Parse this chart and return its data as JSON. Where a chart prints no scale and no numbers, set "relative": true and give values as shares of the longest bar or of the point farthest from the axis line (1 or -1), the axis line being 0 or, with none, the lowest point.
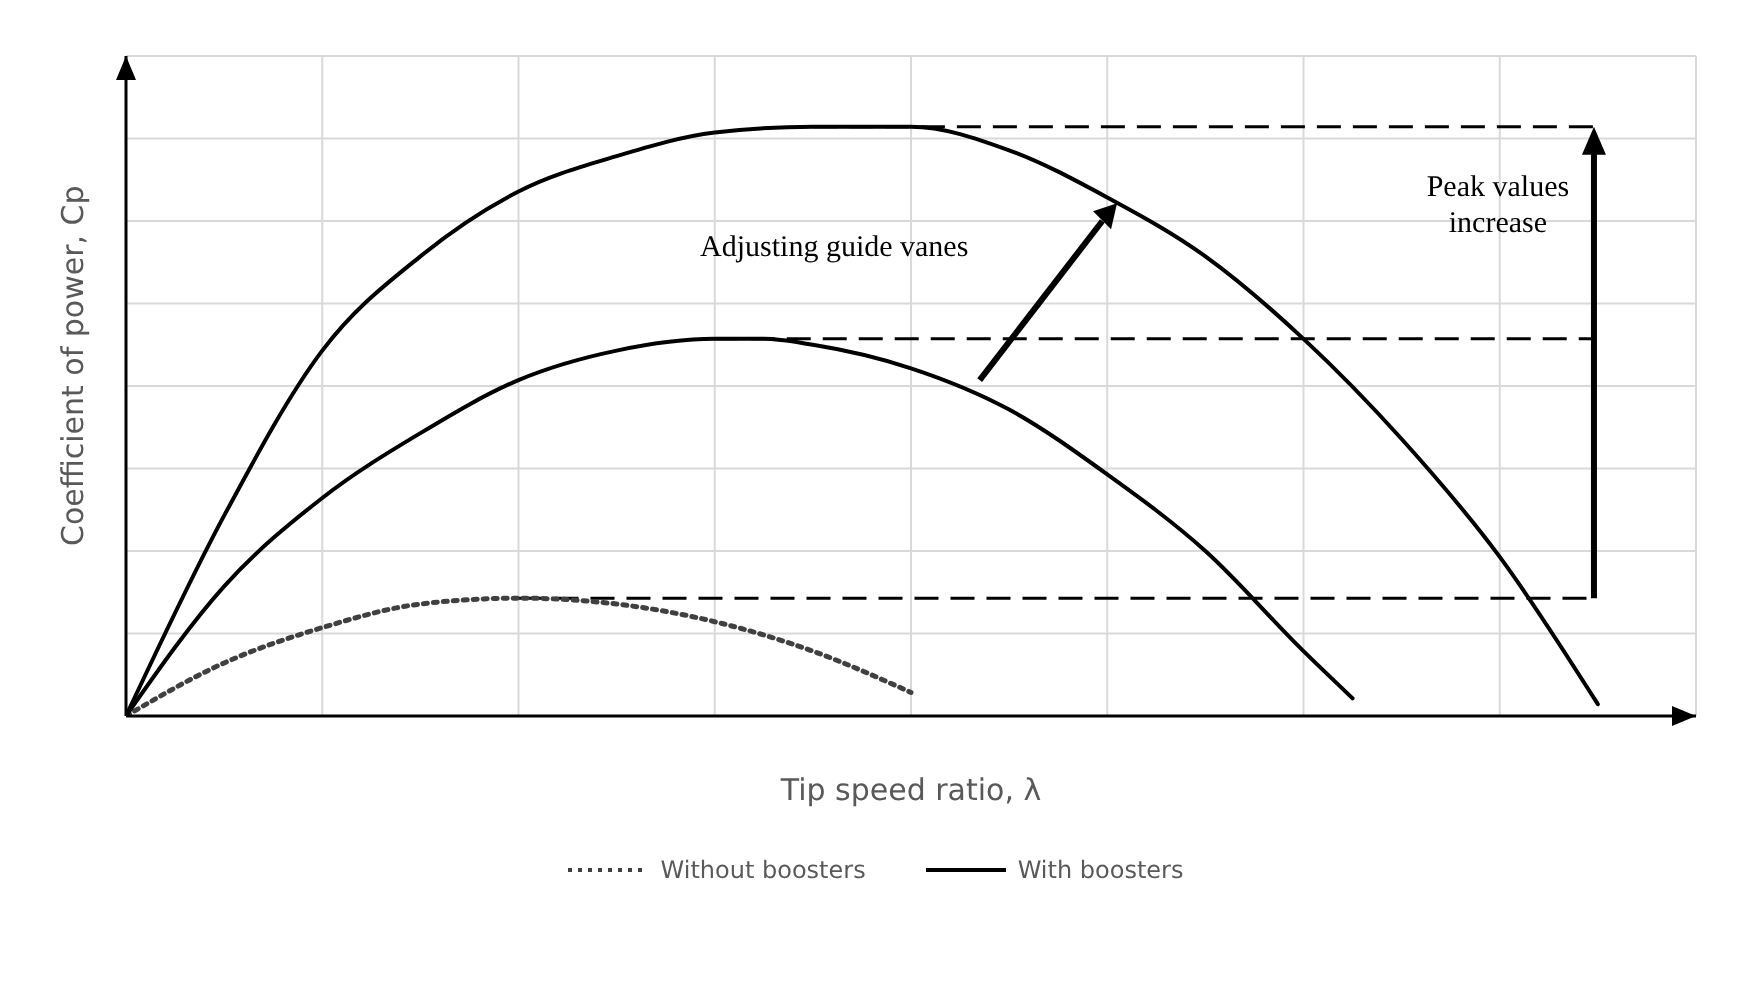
{
  "chart_data": {
    "type": "line",
    "relative": true,
    "xlabel": "Tip speed ratio, λ",
    "ylabel": "Coefficient of power, Cp",
    "categories": [
      null,
      null,
      null,
      null,
      null,
      null,
      null,
      null,
      null,
      null,
      null,
      null,
      null,
      null,
      null,
      null,
      null,
      null,
      null,
      null,
      null,
      null,
      null,
      null,
      null,
      null,
      null,
      null,
      null,
      null,
      null,
      null,
      null
    ],
    "series": [
      {
        "name": "Without boosters",
        "color": "#404040",
        "line_style": "dotted",
        "values": [
          0,
          null,
          0.09,
          null,
          0.15,
          null,
          0.19,
          null,
          0.2,
          null,
          0.19,
          null,
          0.16,
          null,
          0.11,
          null,
          0.04,
          null,
          null,
          null,
          null,
          null,
          null,
          null,
          null,
          null,
          null,
          null,
          null,
          null,
          null,
          null,
          null
        ]
      },
      {
        "name": "With boosters",
        "color": "#000000",
        "line_style": "solid",
        "values": [
          0,
          null,
          0.22,
          null,
          0.37,
          null,
          0.48,
          null,
          0.57,
          null,
          0.62,
          null,
          0.64,
          0.64,
          0.63,
          null,
          0.59,
          null,
          0.52,
          null,
          0.41,
          null,
          0.28,
          null,
          0.11,
          0.03,
          null,
          null,
          null,
          null,
          null,
          null,
          null
        ]
      },
      {
        "color": "#000000",
        "line_style": "solid",
        "values": [
          0,
          null,
          0.34,
          null,
          0.62,
          null,
          0.78,
          null,
          0.89,
          null,
          0.95,
          null,
          0.99,
          null,
          1.0,
          null,
          1.0,
          null,
          0.96,
          null,
          0.88,
          null,
          0.78,
          null,
          0.64,
          null,
          0.47,
          null,
          0.27,
          null,
          0.02,
          null,
          null
        ]
      }
    ],
    "ref_lines": [
      {
        "axis": "y",
        "value": 1.0,
        "line_style": "dashed",
        "color": "#000000"
      },
      {
        "axis": "y",
        "value": 0.64,
        "line_style": "dashed",
        "color": "#000000"
      },
      {
        "axis": "y",
        "value": 0.2,
        "line_style": "dashed",
        "color": "#000000"
      }
    ],
    "annotations": [
      "Adjusting guide vanes",
      "Peak values increase"
    ],
    "grid": true,
    "legend": "bottom",
    "marker": "none"
  }
}
